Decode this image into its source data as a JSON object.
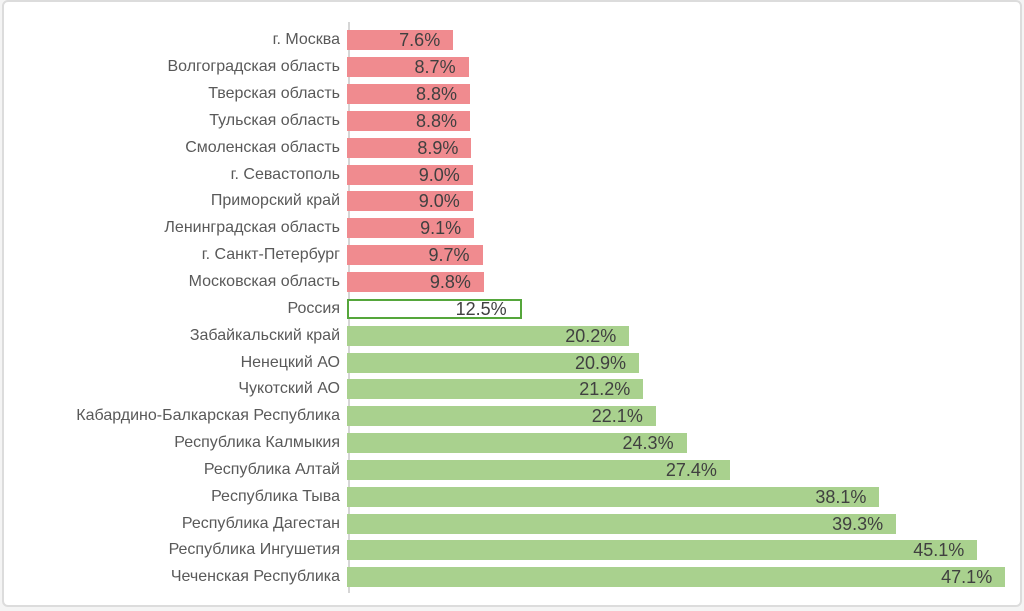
{
  "chart_data": {
    "type": "bar",
    "orientation": "horizontal",
    "title": "",
    "xlabel": "",
    "ylabel": "",
    "grid": false,
    "legend": false,
    "axis_max": 47.3,
    "categories": [
      "г. Москва",
      "Волгоградская область",
      "Тверская область",
      "Тульская область",
      "Смоленская область",
      "г. Севастополь",
      "Приморский край",
      "Ленинградская область",
      "г. Санкт-Петербург",
      "Московская область",
      "Россия",
      "Забайкальский край",
      "Ненецкий АО",
      "Чукотский АО",
      "Кабардино-Балкарская Республика",
      "Республика Калмыкия",
      "Республика Алтай",
      "Республика Тыва",
      "Республика Дагестан",
      "Республика Ингушетия",
      "Чеченская Республика"
    ],
    "values": [
      7.6,
      8.7,
      8.8,
      8.8,
      8.9,
      9.0,
      9.0,
      9.1,
      9.7,
      9.8,
      12.5,
      20.2,
      20.9,
      21.2,
      22.1,
      24.3,
      27.4,
      38.1,
      39.3,
      45.1,
      47.1
    ],
    "value_labels": [
      "7.6%",
      "8.7%",
      "8.8%",
      "8.8%",
      "8.9%",
      "9.0%",
      "9.0%",
      "9.1%",
      "9.7%",
      "9.8%",
      "12.5%",
      "20.2%",
      "20.9%",
      "21.2%",
      "22.1%",
      "24.3%",
      "27.4%",
      "38.1%",
      "39.3%",
      "45.1%",
      "47.1%"
    ],
    "styles": [
      "red",
      "red",
      "red",
      "red",
      "red",
      "red",
      "red",
      "red",
      "red",
      "red",
      "highlight",
      "green",
      "green",
      "green",
      "green",
      "green",
      "green",
      "green",
      "green",
      "green",
      "green"
    ],
    "colors": {
      "red": "#F08B8F",
      "green": "#A9D18E",
      "highlight_fill": "#FFFFFF",
      "highlight_border": "#55A63B",
      "axis_line": "#D6D6D6",
      "category_text": "#595959",
      "value_text": "#404040"
    }
  }
}
